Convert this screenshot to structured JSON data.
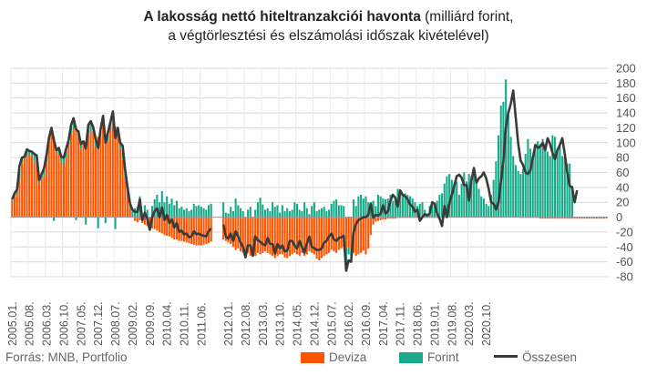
{
  "title": {
    "bold": "A lakosság nettó hiteltranzakciói havonta",
    "rest": " (milliárd forint,",
    "line2": "a végtörlesztési és elszámolási időszak kivételével)"
  },
  "source": "Forrás: MNB, Portfolio",
  "colors": {
    "deviza": "#ff5500",
    "forint": "#1aaa8a",
    "osszesen": "#3a3a3a",
    "grid": "#d9d9d9",
    "axis_text": "#555555"
  },
  "chart_data": {
    "type": "bar",
    "stacked": true,
    "title": "A lakosság nettó hiteltranzakciói havonta (milliárd forint, a végtörlesztési és elszámolási időszak kivételével)",
    "xlabel": "",
    "ylabel": "",
    "ylim": [
      -80,
      200
    ],
    "yticks": [
      -80,
      -60,
      -40,
      -20,
      0,
      20,
      40,
      60,
      80,
      100,
      120,
      140,
      160,
      180,
      200
    ],
    "grid": true,
    "legend_position": "bottom",
    "x_start": "2005.01.",
    "x_tick_labels": [
      "2005.01.",
      "2005.08.",
      "2006.03.",
      "2006.10.",
      "2007.05.",
      "2007.12.",
      "2008.07.",
      "2009.02.",
      "2009.09.",
      "2010.04.",
      "2010.11.",
      "2011.06.",
      "2012.01.",
      "2012.08.",
      "2013.03.",
      "2013.10.",
      "2014.05.",
      "2014.12.",
      "2015.07.",
      "2016.02.",
      "2016.09.",
      "2017.04.",
      "2017.11.",
      "2018.06.",
      "2019.01.",
      "2019.08.",
      "2020.03.",
      "2020.10."
    ],
    "gap_after": "2011.10.",
    "gap_resume": "2012.03.",
    "series": [
      {
        "name": "Deviza",
        "values": [
          22,
          28,
          32,
          55,
          72,
          78,
          83,
          85,
          82,
          75,
          68,
          45,
          52,
          56,
          75,
          102,
          118,
          108,
          88,
          85,
          75,
          70,
          80,
          98,
          112,
          118,
          122,
          112,
          92,
          98,
          102,
          112,
          115,
          112,
          95,
          108,
          112,
          128,
          108,
          102,
          118,
          128,
          122,
          108,
          92,
          78,
          52,
          30,
          12,
          2,
          -5,
          -7,
          -4,
          -8,
          -10,
          -12,
          -14,
          -15,
          -16,
          -18,
          -20,
          -22,
          -24,
          -25,
          -26,
          -28,
          -30,
          -30,
          -32,
          -32,
          -33,
          -34,
          -35,
          -36,
          -37,
          -38,
          -38,
          -38,
          -37,
          -36,
          -35,
          -33,
          -30,
          -32,
          -34,
          -36,
          -40,
          -44,
          -42,
          -46,
          -48,
          -50,
          -48,
          -52,
          -50,
          -52,
          -48,
          -50,
          -48,
          -46,
          -48,
          -50,
          -52,
          -55,
          -52,
          -50,
          -50,
          -54,
          -55,
          -52,
          -50,
          -48,
          -50,
          -52,
          -48,
          -52,
          -50,
          -46,
          -48,
          -50,
          -56,
          -58,
          -55,
          -52,
          -50,
          -48,
          -44,
          -46,
          -48,
          -44,
          -42,
          -40,
          -42,
          -40,
          -44,
          -48,
          -52,
          -50,
          -48,
          -45,
          -50,
          -42,
          -24,
          -10,
          -6,
          -5,
          -4,
          -3,
          -3,
          -2,
          -2,
          -2,
          -2,
          -1,
          -1,
          -1,
          -1,
          -1,
          -1,
          -1,
          -1,
          -1,
          -1,
          -1,
          -1,
          -1,
          -1,
          -1,
          -1,
          -1,
          -1,
          -1,
          -1,
          0,
          0,
          0,
          0,
          0,
          0,
          0,
          0,
          0,
          0,
          0,
          0,
          0,
          0,
          0,
          0,
          0,
          0,
          0,
          0,
          0,
          0,
          0,
          0,
          0,
          0,
          0,
          0,
          0,
          0,
          -1,
          -1,
          -1,
          -1,
          -1,
          -1,
          -1,
          -1,
          -2,
          -2,
          -2,
          -2,
          -2,
          -2,
          -2,
          -2,
          -2,
          -2,
          -2,
          -2,
          -2,
          -2,
          -2,
          -2,
          -2,
          -2,
          -2,
          -2,
          -2,
          -2,
          -2,
          -2,
          -2,
          -2,
          -2,
          -2
        ]
      },
      {
        "name": "Forint",
        "values": [
          2,
          4,
          5,
          14,
          8,
          3,
          8,
          4,
          6,
          10,
          15,
          5,
          6,
          10,
          9,
          5,
          2,
          -5,
          2,
          8,
          6,
          10,
          12,
          5,
          12,
          15,
          -4,
          3,
          6,
          4,
          -10,
          12,
          14,
          9,
          10,
          -15,
          6,
          8,
          -8,
          12,
          10,
          14,
          -16,
          12,
          8,
          18,
          12,
          10,
          6,
          8,
          12,
          14,
          28,
          4,
          16,
          10,
          -3,
          15,
          24,
          30,
          20,
          35,
          20,
          28,
          18,
          25,
          16,
          22,
          12,
          14,
          10,
          12,
          8,
          10,
          18,
          15,
          16,
          14,
          12,
          10,
          16,
          18,
          20,
          6,
          5,
          14,
          8,
          25,
          16,
          12,
          8,
          -4,
          10,
          14,
          -2,
          10,
          20,
          26,
          17,
          10,
          12,
          8,
          20,
          14,
          16,
          6,
          16,
          8,
          12,
          8,
          10,
          20,
          18,
          10,
          8,
          20,
          12,
          4,
          15,
          20,
          8,
          10,
          12,
          14,
          8,
          10,
          18,
          22,
          24,
          16,
          16,
          15,
          -30,
          -10,
          -8,
          24,
          15,
          28,
          30,
          25,
          28,
          20,
          20,
          22,
          15,
          30,
          28,
          25,
          24,
          25,
          30,
          22,
          28,
          38,
          36,
          30,
          32,
          30,
          28,
          25,
          20,
          15,
          18,
          20,
          10,
          5,
          15,
          18,
          15,
          22,
          30,
          32,
          45,
          55,
          58,
          50,
          45,
          48,
          30,
          45,
          60,
          48,
          58,
          55,
          62,
          48,
          38,
          28,
          25,
          18,
          15,
          30,
          50,
          75,
          110,
          150,
          155,
          185,
          140,
          108,
          82,
          70,
          62,
          58,
          65,
          85,
          105,
          92,
          78,
          92,
          102,
          98,
          105,
          98,
          88,
          82,
          110,
          108,
          88,
          98,
          82,
          80,
          72,
          72,
          42
        ]
      },
      {
        "name": "Összesen",
        "type": "line",
        "values": [
          24,
          32,
          37,
          69,
          80,
          81,
          91,
          89,
          88,
          85,
          83,
          50,
          58,
          66,
          84,
          107,
          120,
          103,
          90,
          93,
          81,
          80,
          92,
          103,
          124,
          133,
          118,
          115,
          98,
          102,
          92,
          124,
          129,
          121,
          105,
          93,
          118,
          136,
          100,
          114,
          128,
          142,
          106,
          120,
          100,
          96,
          64,
          40,
          18,
          10,
          7,
          7,
          24,
          -4,
          6,
          -2,
          -17,
          0,
          8,
          12,
          0,
          13,
          -4,
          3,
          -8,
          -3,
          -14,
          -8,
          -20,
          -18,
          -23,
          -22,
          -27,
          -26,
          -19,
          -23,
          -22,
          -24,
          -25,
          -26,
          -19,
          -15,
          -10,
          -26,
          -29,
          -22,
          -32,
          -19,
          -26,
          -34,
          -40,
          -54,
          -38,
          -38,
          -52,
          -26,
          -31,
          -33,
          -36,
          -38,
          -28,
          -36,
          -36,
          -49,
          -36,
          -42,
          -38,
          -46,
          -45,
          -32,
          -32,
          -38,
          -42,
          -32,
          -40,
          -48,
          -35,
          -26,
          -40,
          -42,
          -44,
          -44,
          -42,
          -34,
          -32,
          -26,
          -22,
          -30,
          -32,
          -28,
          -27,
          -25,
          -72,
          -58,
          -60,
          -21,
          -9,
          -4,
          -2,
          0,
          0,
          3,
          18,
          -1,
          3,
          2,
          5,
          16,
          5,
          8,
          22,
          30,
          26,
          14,
          36,
          30,
          28,
          24,
          17,
          14,
          7,
          10,
          -5,
          0,
          4,
          2,
          5,
          20,
          18,
          5,
          -2,
          -12,
          15,
          0,
          18,
          30,
          42,
          55,
          57,
          53,
          43,
          43,
          22,
          50,
          66,
          46,
          52,
          55,
          60,
          52,
          38,
          20,
          18,
          10,
          20,
          48,
          75,
          120,
          140,
          152,
          170,
          135,
          100,
          76,
          70,
          60,
          58,
          63,
          80,
          97,
          93,
          95,
          100,
          90,
          106,
          98,
          86,
          78,
          90,
          97,
          106,
          85,
          60,
          42,
          40,
          20,
          36
        ]
      }
    ]
  }
}
